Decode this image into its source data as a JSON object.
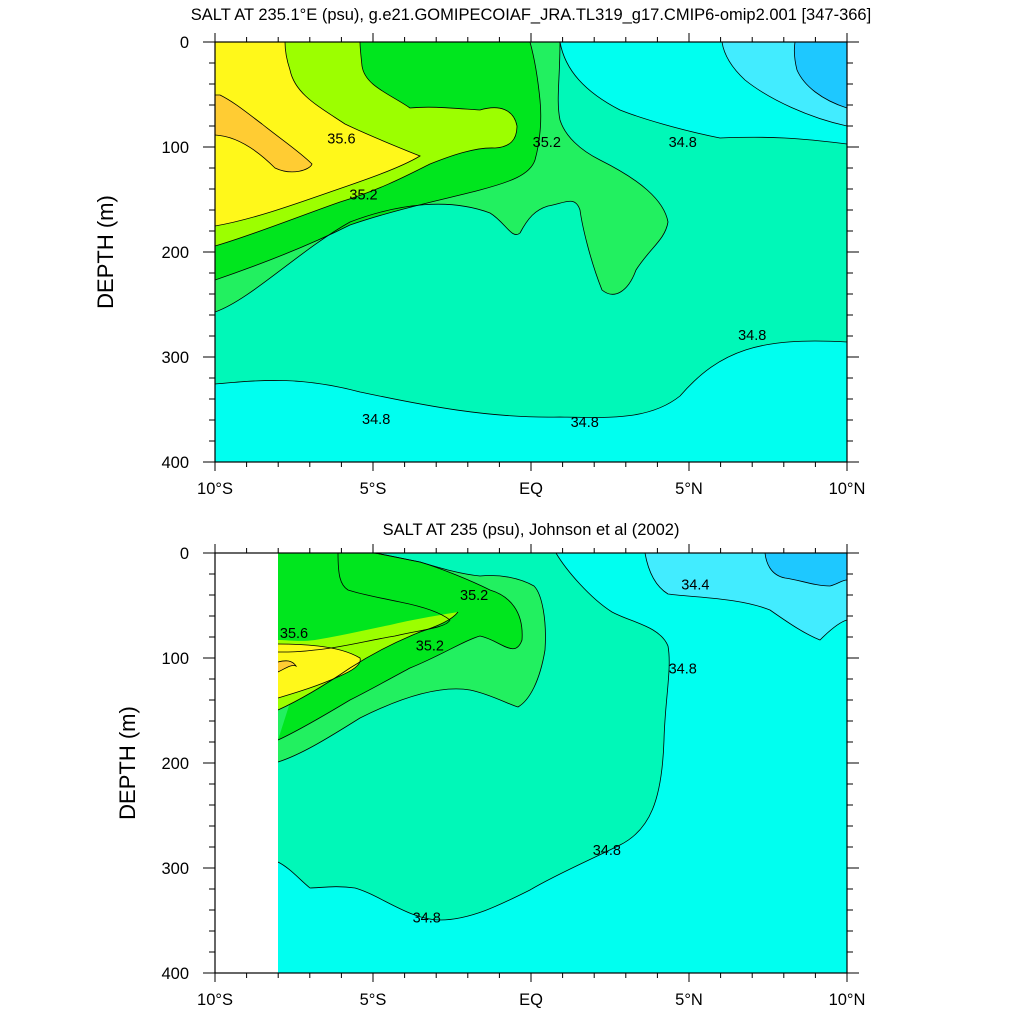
{
  "palette": {
    "lt_34_4": "#1ec8ff",
    "34_4_34_6": "#42ecff",
    "34_6_34_8": "#00fff0",
    "34_8_35_0": "#00f8b8",
    "35_0_35_2": "#22f060",
    "35_2_35_4": "#00e61e",
    "35_4_35_6": "#9cff00",
    "35_6_35_8": "#fff81a",
    "gt_35_8": "#ffcc33"
  },
  "chart_data": [
    {
      "type": "contour",
      "title": "SALT AT 235.1°E (psu), g.e21.GOMIPECOIAF_JRA.TL319_g17.CMIP6-omip2.001 [347-366]",
      "ylabel": "DEPTH (m)",
      "xlabel": "",
      "xlim": [
        -10,
        10
      ],
      "ylim": [
        400,
        0
      ],
      "x_ticks": [
        -10,
        -5,
        0,
        5,
        10
      ],
      "x_tick_labels": [
        "10°S",
        "5°S",
        "EQ",
        "5°N",
        "10°N"
      ],
      "y_ticks": [
        0,
        100,
        200,
        300,
        400
      ],
      "y_tick_labels": [
        "0",
        "100",
        "200",
        "300",
        "400"
      ],
      "contour_levels": [
        34.4,
        34.6,
        34.8,
        35.0,
        35.2,
        35.4,
        35.6,
        35.8
      ],
      "contour_labels": [
        {
          "text": "35.6",
          "x": -6.0,
          "y": 92
        },
        {
          "text": "35.2",
          "x": 0.5,
          "y": 95
        },
        {
          "text": "34.8",
          "x": 4.8,
          "y": 95
        },
        {
          "text": "35.2",
          "x": -5.3,
          "y": 145
        },
        {
          "text": "34.8",
          "x": 7.0,
          "y": 279
        },
        {
          "text": "34.8",
          "x": -4.9,
          "y": 359
        },
        {
          "text": "34.8",
          "x": 1.7,
          "y": 362
        }
      ]
    },
    {
      "type": "contour",
      "title": "SALT AT 235 (psu), Johnson et al (2002)",
      "ylabel": "DEPTH (m)",
      "xlabel": "",
      "xlim": [
        -10,
        10
      ],
      "ylim": [
        400,
        0
      ],
      "data_xrange": [
        -8,
        10
      ],
      "x_ticks": [
        -10,
        -5,
        0,
        5,
        10
      ],
      "x_tick_labels": [
        "10°S",
        "5°S",
        "EQ",
        "5°N",
        "10°N"
      ],
      "y_ticks": [
        0,
        100,
        200,
        300,
        400
      ],
      "y_tick_labels": [
        "0",
        "100",
        "200",
        "300",
        "400"
      ],
      "contour_levels": [
        34.4,
        34.6,
        34.8,
        35.0,
        35.2,
        35.4,
        35.6,
        35.8
      ],
      "contour_labels": [
        {
          "text": "34.4",
          "x": 5.2,
          "y": 30
        },
        {
          "text": "35.2",
          "x": -1.8,
          "y": 40
        },
        {
          "text": "35.6",
          "x": -7.5,
          "y": 76
        },
        {
          "text": "35.2",
          "x": -3.2,
          "y": 88
        },
        {
          "text": "34.8",
          "x": 4.8,
          "y": 110
        },
        {
          "text": "34.8",
          "x": 2.4,
          "y": 283
        },
        {
          "text": "34.8",
          "x": -3.3,
          "y": 347
        }
      ]
    }
  ]
}
